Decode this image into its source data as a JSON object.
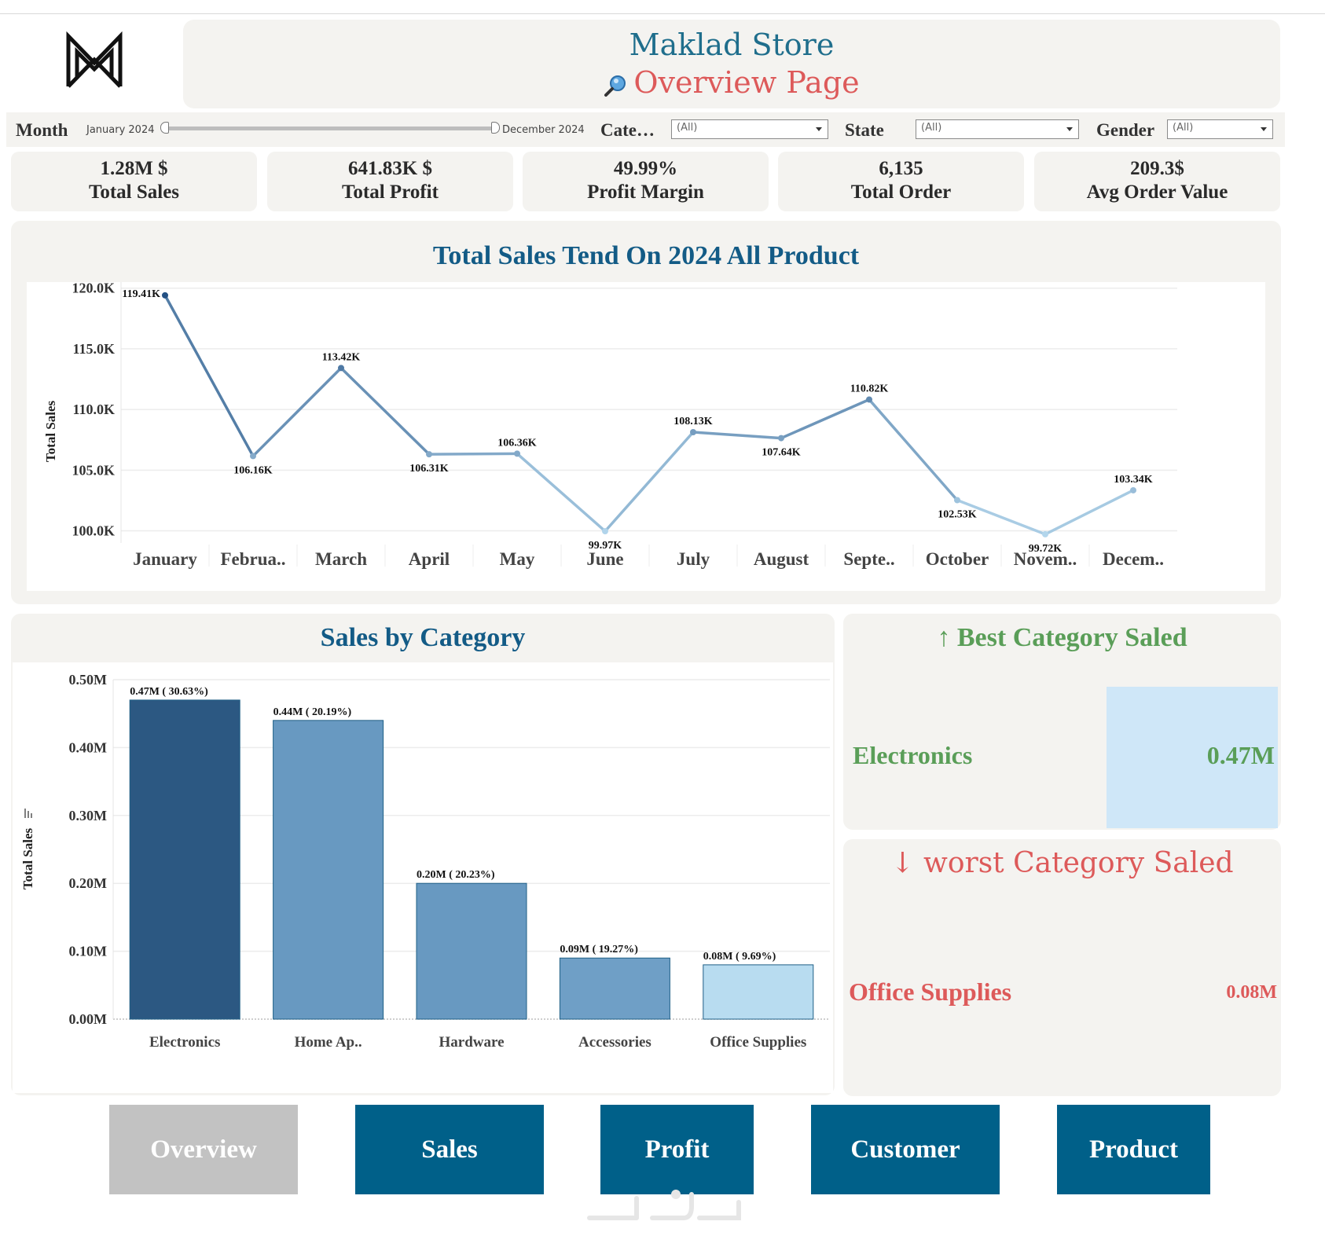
{
  "header": {
    "store_name": "Maklad Store",
    "page_name": "Overview Page",
    "title_color": "#1f6e8c",
    "subtitle_color": "#dd5a5a"
  },
  "filters": {
    "month_label": "Month",
    "month_start": "January 2024",
    "month_end": "December 2024",
    "category_label": "Cate…",
    "category_value": "(All)",
    "state_label": "State",
    "state_value": "(All)",
    "gender_label": "Gender",
    "gender_value": "(All)"
  },
  "kpis": [
    {
      "value": "1.28M $",
      "label": "Total Sales"
    },
    {
      "value": "641.83K $",
      "label": "Total Profit"
    },
    {
      "value": "49.99%",
      "label": "Profit Margin"
    },
    {
      "value": "6,135",
      "label": "Total Order"
    },
    {
      "value": "209.3$",
      "label": "Avg Order Value"
    }
  ],
  "trend": {
    "title": "Total Sales Tend On 2024 All Product",
    "ylabel": "Total Sales",
    "yticks": [
      "120.0K",
      "115.0K",
      "110.0K",
      "105.0K",
      "100.0K"
    ]
  },
  "category_panel": {
    "title": "Sales by Category",
    "ylabel": "Total Sales",
    "yticks": [
      "0.50M",
      "0.40M",
      "0.30M",
      "0.20M",
      "0.10M",
      "0.00M"
    ]
  },
  "best": {
    "title": "↑ Best Category Saled",
    "category": "Electronics",
    "value": "0.47M",
    "color": "#5a9e58"
  },
  "worst": {
    "title": "↓ worst Category Saled",
    "category": "Office Supplies",
    "value": "0.08M",
    "color": "#dd5a5a"
  },
  "nav": [
    {
      "label": "Overview",
      "active": true
    },
    {
      "label": "Sales",
      "active": false
    },
    {
      "label": "Profit",
      "active": false
    },
    {
      "label": "Customer",
      "active": false
    },
    {
      "label": "Product",
      "active": false
    }
  ],
  "chart_data": [
    {
      "type": "line",
      "title": "Total Sales Tend On 2024 All Product",
      "ylabel": "Total Sales",
      "xlabel": "",
      "categories": [
        "January",
        "Februa..",
        "March",
        "April",
        "May",
        "June",
        "July",
        "August",
        "Septe..",
        "October",
        "Novem..",
        "Decem.."
      ],
      "values": [
        119.41,
        106.16,
        113.42,
        106.31,
        106.36,
        99.97,
        108.13,
        107.64,
        110.82,
        102.53,
        99.72,
        103.34
      ],
      "value_labels": [
        "119.41K",
        "106.16K",
        "113.42K",
        "106.31K",
        "106.36K",
        "99.97K",
        "108.13K",
        "107.64K",
        "110.82K",
        "102.53K",
        "99.72K",
        "103.34K"
      ],
      "ylim": [
        99,
        120.5
      ],
      "grid": true,
      "color_scale": [
        "#b3d6ec",
        "#245184"
      ]
    },
    {
      "type": "bar",
      "title": "Sales by Category",
      "ylabel": "Total Sales",
      "categories": [
        "Electronics",
        "Home Ap..",
        "Hardware",
        "Accessories",
        "Office Supplies"
      ],
      "values": [
        0.47,
        0.44,
        0.2,
        0.09,
        0.08
      ],
      "value_labels": [
        "0.47M ( 30.63%)",
        "0.44M ( 20.19%)",
        "0.20M ( 20.23%)",
        "0.09M ( 19.27%)",
        "0.08M ( 9.69%)"
      ],
      "colors": [
        "#2c5882",
        "#6899c1",
        "#6899c1",
        "#6f9fc6",
        "#b8dcf0"
      ],
      "ylim": [
        0,
        0.5
      ],
      "grid": true
    }
  ]
}
